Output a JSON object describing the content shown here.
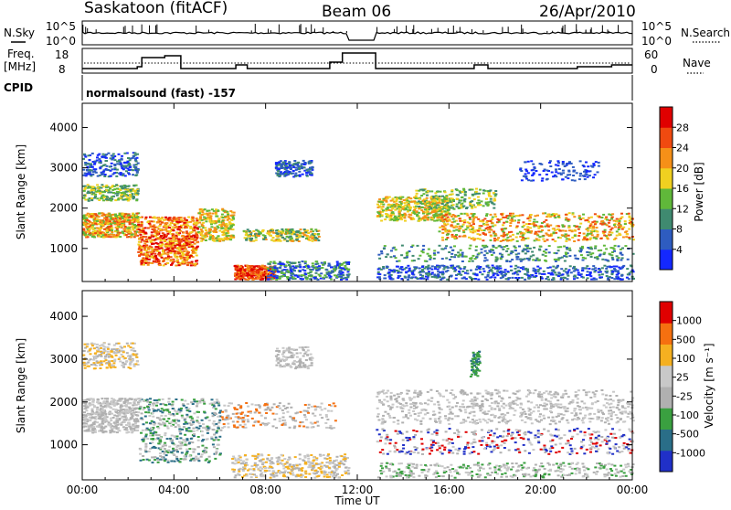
{
  "header": {
    "title": "Saskatoon (fitACF)",
    "beam": "Beam 06",
    "date": "26/Apr/2010",
    "program": "normalsound (fast) -157"
  },
  "strip": {
    "nsky_label": "N.Sky",
    "nsky_ticks": [
      "10^5",
      "10^0"
    ],
    "nsearch_label": "N.Search",
    "nsearch_ticks": [
      "10^5",
      "10^0"
    ],
    "freq_label": "Freq.",
    "freq_unit": "[MHz]",
    "freq_ticks": [
      "18",
      "8"
    ],
    "nave_label": "Nave",
    "nave_ticks": [
      "60",
      "0"
    ],
    "cpid_label": "CPID"
  },
  "chart_data": [
    {
      "type": "heatmap",
      "name": "power",
      "ylabel": "Slant Range [km]",
      "yticks": [
        1000,
        2000,
        3000,
        4000
      ],
      "ylim": [
        180,
        4600
      ],
      "colorbar": {
        "title": "Power [dB]",
        "ticks": [
          "4",
          "8",
          "12",
          "16",
          "20",
          "24",
          "28"
        ],
        "colors": [
          "#1428ff",
          "#2e5cc0",
          "#3f8a70",
          "#60b83a",
          "#f0d020",
          "#f59018",
          "#f04a10",
          "#e00000"
        ]
      },
      "coverage_hours": [
        [
          0.0,
          11.6
        ],
        [
          12.8,
          24.0
        ]
      ]
    },
    {
      "type": "heatmap",
      "name": "velocity",
      "ylabel": "Slant Range [km]",
      "yticks": [
        1000,
        2000,
        3000,
        4000
      ],
      "ylim": [
        180,
        4600
      ],
      "colorbar": {
        "title": "Velocity [m s⁻¹]",
        "ticks": [
          "1000",
          "500",
          "100",
          "25",
          "-25",
          "-100",
          "-500",
          "-1000"
        ],
        "colors": [
          "#2030c8",
          "#2a6e88",
          "#3aa040",
          "#b0b0b0",
          "#c8c8c8",
          "#f5b020",
          "#f57010",
          "#e00000"
        ]
      },
      "coverage_hours": [
        [
          0.0,
          11.6
        ],
        [
          12.8,
          24.0
        ]
      ]
    }
  ],
  "xaxis": {
    "label": "Time UT",
    "ticks": [
      "00:00",
      "04:00",
      "08:00",
      "12:00",
      "16:00",
      "20:00",
      "00:00"
    ],
    "range_hours": [
      0,
      24
    ]
  }
}
